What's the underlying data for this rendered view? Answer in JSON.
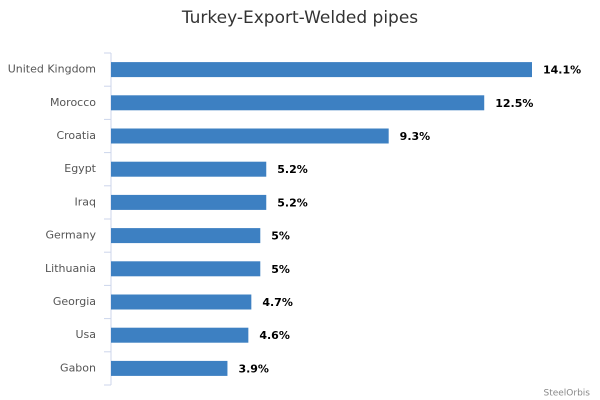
{
  "chart_data": {
    "type": "bar",
    "orientation": "horizontal",
    "title": "Turkey-Export-Welded pipes",
    "categories": [
      "United Kingdom",
      "Morocco",
      "Croatia",
      "Egypt",
      "Iraq",
      "Germany",
      "Lithuania",
      "Georgia",
      "Usa",
      "Gabon"
    ],
    "values": [
      14.1,
      12.5,
      9.3,
      5.2,
      5.2,
      5,
      5,
      4.7,
      4.6,
      3.9
    ],
    "value_labels": [
      "14.1%",
      "12.5%",
      "9.3%",
      "5.2%",
      "5.2%",
      "5%",
      "5%",
      "4.7%",
      "4.6%",
      "3.9%"
    ],
    "color": "#3d80c2",
    "source": "SteelOrbis"
  }
}
